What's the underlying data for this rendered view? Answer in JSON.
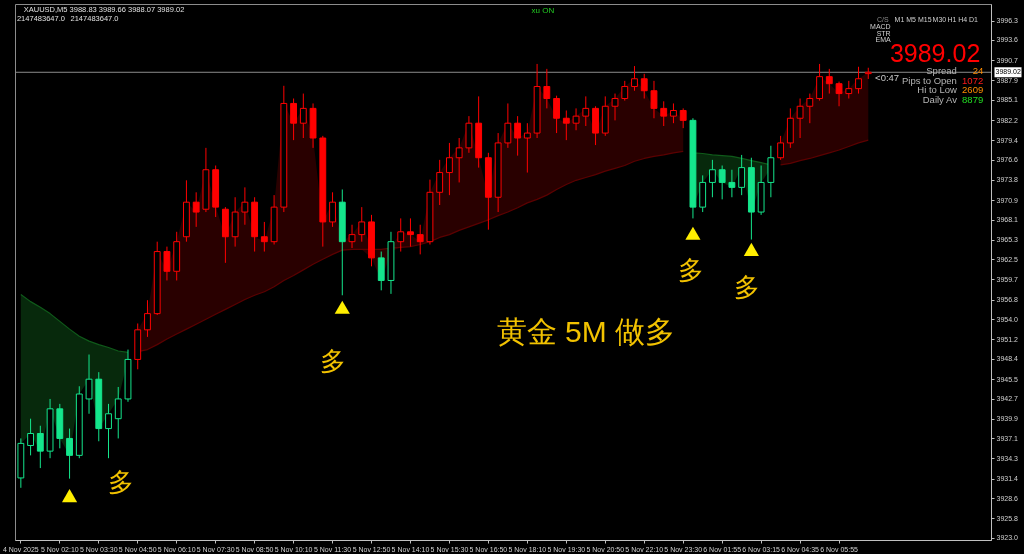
{
  "chart_data": {
    "type": "candlestick",
    "categories": [
      "4 Nov 2025",
      null,
      null,
      null,
      "5 Nov 02:10",
      null,
      null,
      null,
      "5 Nov 03:30",
      null,
      null,
      null,
      "5 Nov 04:50",
      null,
      null,
      null,
      "5 Nov 06:10",
      null,
      null,
      null,
      "5 Nov 07:30",
      null,
      null,
      null,
      "5 Nov 08:50",
      null,
      null,
      null,
      "5 Nov 10:10",
      null,
      null,
      null,
      "5 Nov 11:30",
      null,
      null,
      null,
      "5 Nov 12:50",
      null,
      null,
      null,
      "5 Nov 14:10",
      null,
      null,
      null,
      "5 Nov 15:30",
      null,
      null,
      null,
      "5 Nov 16:50",
      null,
      null,
      null,
      "5 Nov 18:10",
      null,
      null,
      null,
      "5 Nov 19:30",
      null,
      null,
      null,
      "5 Nov 20:50",
      null,
      null,
      null,
      "5 Nov 22:10",
      null,
      null,
      null,
      "5 Nov 23:30",
      null,
      null,
      null,
      "6 Nov 01:55",
      null,
      null,
      null,
      "6 Nov 03:15",
      null,
      null,
      null,
      "6 Nov 04:35",
      null,
      null,
      null,
      "6 Nov 05:55",
      null,
      null,
      null,
      null,
      null,
      null,
      null,
      null,
      null,
      null,
      null,
      null,
      null,
      null,
      null
    ],
    "ohlc": [
      [
        3931.5,
        3937.1,
        3930.1,
        3936.4
      ],
      [
        3936.1,
        3939.9,
        3934.7,
        3937.8
      ],
      [
        3937.8,
        3938.9,
        3932.9,
        3935.3
      ],
      [
        3935.3,
        3942.7,
        3934.3,
        3941.3
      ],
      [
        3941.3,
        3942.0,
        3935.7,
        3937.1
      ],
      [
        3937.1,
        3938.5,
        3931.4,
        3934.7
      ],
      [
        3934.7,
        3944.5,
        3934.3,
        3943.4
      ],
      [
        3942.7,
        3949.0,
        3940.6,
        3945.5
      ],
      [
        3945.5,
        3946.5,
        3936.7,
        3938.5
      ],
      [
        3938.5,
        3942.0,
        3934.3,
        3940.6
      ],
      [
        3939.9,
        3944.4,
        3937.1,
        3942.7
      ],
      [
        3942.7,
        3949.7,
        3942.3,
        3948.3
      ],
      [
        3948.3,
        3953.4,
        3946.9,
        3952.5
      ],
      [
        3952.5,
        3956.7,
        3951.5,
        3954.8
      ],
      [
        3954.8,
        3965.0,
        3954.6,
        3963.6
      ],
      [
        3963.6,
        3964.3,
        3959.5,
        3960.8
      ],
      [
        3960.8,
        3966.4,
        3959.5,
        3965.0
      ],
      [
        3965.7,
        3973.7,
        3965.0,
        3970.6
      ],
      [
        3970.6,
        3972.0,
        3967.1,
        3969.2
      ],
      [
        3969.6,
        3978.3,
        3969.2,
        3975.2
      ],
      [
        3975.2,
        3975.8,
        3968.5,
        3969.9
      ],
      [
        3969.6,
        3969.9,
        3962.0,
        3965.7
      ],
      [
        3965.7,
        3971.3,
        3964.3,
        3969.2
      ],
      [
        3969.2,
        3972.7,
        3967.4,
        3970.6
      ],
      [
        3970.6,
        3971.3,
        3963.6,
        3965.7
      ],
      [
        3965.7,
        3967.8,
        3963.6,
        3965.0
      ],
      [
        3965.0,
        3971.6,
        3964.6,
        3969.9
      ],
      [
        3969.9,
        3987.1,
        3969.2,
        3984.6
      ],
      [
        3984.6,
        3985.3,
        3979.4,
        3981.8
      ],
      [
        3981.8,
        3986.0,
        3979.7,
        3983.9
      ],
      [
        3983.9,
        3984.6,
        3978.3,
        3979.7
      ],
      [
        3979.7,
        3980.0,
        3964.3,
        3967.8
      ],
      [
        3967.8,
        3972.0,
        3967.1,
        3970.6
      ],
      [
        3970.6,
        3972.4,
        3957.4,
        3965.0
      ],
      [
        3965.0,
        3967.4,
        3964.1,
        3966.0
      ],
      [
        3966.0,
        3969.9,
        3965.0,
        3967.8
      ],
      [
        3967.8,
        3968.8,
        3961.5,
        3962.7
      ],
      [
        3962.7,
        3963.6,
        3958.1,
        3959.5
      ],
      [
        3959.5,
        3966.4,
        3957.6,
        3965.0
      ],
      [
        3965.0,
        3968.3,
        3963.6,
        3966.4
      ],
      [
        3966.4,
        3968.3,
        3964.3,
        3966.0
      ],
      [
        3966.0,
        3967.4,
        3963.2,
        3965.0
      ],
      [
        3965.0,
        3973.8,
        3964.6,
        3972.0
      ],
      [
        3972.0,
        3976.6,
        3970.2,
        3974.8
      ],
      [
        3974.8,
        3979.0,
        3971.6,
        3976.9
      ],
      [
        3976.9,
        3979.7,
        3973.4,
        3978.3
      ],
      [
        3978.3,
        3982.8,
        3977.6,
        3981.8
      ],
      [
        3981.8,
        3985.6,
        3975.5,
        3976.9
      ],
      [
        3976.9,
        3977.6,
        3966.7,
        3971.3
      ],
      [
        3971.3,
        3980.4,
        3969.2,
        3979.0
      ],
      [
        3979.0,
        3984.6,
        3978.3,
        3981.8
      ],
      [
        3981.8,
        3982.8,
        3977.2,
        3979.7
      ],
      [
        3979.7,
        3981.8,
        3974.8,
        3980.4
      ],
      [
        3980.4,
        3990.2,
        3979.7,
        3987.0
      ],
      [
        3987.0,
        3989.5,
        3983.9,
        3985.3
      ],
      [
        3985.3,
        3985.7,
        3980.4,
        3982.5
      ],
      [
        3982.5,
        3983.6,
        3979.4,
        3981.8
      ],
      [
        3981.8,
        3983.9,
        3980.8,
        3982.8
      ],
      [
        3982.8,
        3985.6,
        3981.4,
        3983.9
      ],
      [
        3983.9,
        3984.2,
        3978.7,
        3980.4
      ],
      [
        3980.4,
        3985.6,
        3980.0,
        3984.2
      ],
      [
        3984.2,
        3986.0,
        3982.2,
        3985.3
      ],
      [
        3985.3,
        3987.8,
        3985.0,
        3987.0
      ],
      [
        3987.0,
        3989.9,
        3986.4,
        3988.1
      ],
      [
        3988.1,
        3988.8,
        3985.3,
        3986.4
      ],
      [
        3986.4,
        3987.8,
        3982.5,
        3983.9
      ],
      [
        3983.9,
        3984.9,
        3981.4,
        3982.8
      ],
      [
        3982.8,
        3984.6,
        3981.8,
        3983.6
      ],
      [
        3983.6,
        3983.9,
        3981.1,
        3982.2
      ],
      [
        3982.2,
        3982.5,
        3968.3,
        3969.9
      ],
      [
        3969.9,
        3974.4,
        3969.2,
        3973.4
      ],
      [
        3973.4,
        3976.6,
        3971.3,
        3975.2
      ],
      [
        3975.2,
        3975.8,
        3971.0,
        3973.4
      ],
      [
        3973.4,
        3975.2,
        3971.3,
        3972.7
      ],
      [
        3972.7,
        3977.3,
        3971.6,
        3975.5
      ],
      [
        3975.5,
        3976.9,
        3965.3,
        3969.2
      ],
      [
        3969.2,
        3975.8,
        3968.8,
        3973.4
      ],
      [
        3973.4,
        3978.6,
        3971.3,
        3976.9
      ],
      [
        3976.9,
        3980.0,
        3976.6,
        3979.0
      ],
      [
        3979.0,
        3983.9,
        3978.3,
        3982.5
      ],
      [
        3982.5,
        3985.3,
        3979.7,
        3984.2
      ],
      [
        3984.2,
        3986.0,
        3981.8,
        3985.3
      ],
      [
        3985.3,
        3990.2,
        3985.0,
        3988.4
      ],
      [
        3988.4,
        3989.5,
        3986.0,
        3987.4
      ],
      [
        3987.4,
        3987.7,
        3984.2,
        3986.0
      ],
      [
        3986.0,
        3987.8,
        3985.3,
        3986.7
      ],
      [
        3986.7,
        3989.8,
        3986.0,
        3988.1
      ],
      [
        3988.83,
        3989.66,
        3988.07,
        3989.02
      ],
      null,
      null,
      null,
      null,
      null,
      null,
      null,
      null,
      null,
      null,
      null,
      null
    ],
    "colors": [
      "#14e68c",
      "#14e68c",
      "#14e68c",
      "#14e68c",
      "#14e68c",
      "#14e68c",
      "#14e68c",
      "#14e68c",
      "#14e68c",
      "#14e68c",
      "#14e68c",
      "#14e68c",
      "#ff0000",
      "#ff0000",
      "#ff0000",
      "#ff0000",
      "#ff0000",
      "#ff0000",
      "#ff0000",
      "#ff0000",
      "#ff0000",
      "#ff0000",
      "#ff0000",
      "#ff0000",
      "#ff0000",
      "#ff0000",
      "#ff0000",
      "#ff0000",
      "#ff0000",
      "#ff0000",
      "#ff0000",
      "#ff0000",
      "#ff0000",
      "#14e68c",
      "#ff0000",
      "#ff0000",
      "#ff0000",
      "#14e68c",
      "#14e68c",
      "#ff0000",
      "#ff0000",
      "#ff0000",
      "#ff0000",
      "#ff0000",
      "#ff0000",
      "#ff0000",
      "#ff0000",
      "#ff0000",
      "#ff0000",
      "#ff0000",
      "#ff0000",
      "#ff0000",
      "#ff0000",
      "#ff0000",
      "#ff0000",
      "#ff0000",
      "#ff0000",
      "#ff0000",
      "#ff0000",
      "#ff0000",
      "#ff0000",
      "#ff0000",
      "#ff0000",
      "#ff0000",
      "#ff0000",
      "#ff0000",
      "#ff0000",
      "#ff0000",
      "#ff0000",
      "#14e68c",
      "#14e68c",
      "#14e68c",
      "#14e68c",
      "#14e68c",
      "#14e68c",
      "#14e68c",
      "#14e68c",
      "#14e68c",
      "#ff0000",
      "#ff0000",
      "#ff0000",
      "#ff0000",
      "#ff0000",
      "#ff0000",
      "#ff0000",
      "#ff0000",
      "#ff0000",
      "#ff0000",
      null,
      null,
      null,
      null,
      null,
      null,
      null,
      null,
      null,
      null,
      null,
      null
    ],
    "ylim": [
      3922.7,
      3998.7
    ],
    "yticks": [
      {
        "value": 3923,
        "label": "3923.0"
      },
      3925.8,
      3928.6,
      3931.4,
      3934.3,
      3937.1,
      3939.9,
      3942.7,
      3945.5,
      3948.4,
      3951.2,
      {
        "value": 3954,
        "label": "3954.0"
      },
      3956.8,
      3959.7,
      3962.5,
      3965.3,
      3968.1,
      3970.9,
      3973.8,
      3976.6,
      3979.4,
      3982.2,
      3985.1,
      3987.9,
      3990.7,
      3993.6,
      3996.3
    ],
    "series": [
      {
        "type": "line",
        "color": "#5c0000",
        "values": [
          null,
          null,
          null,
          null,
          null,
          null,
          null,
          null,
          null,
          null,
          null,
          null,
          3949.4,
          3949.7,
          3950.4,
          3951.2,
          3951.9,
          3952.6,
          3953.3,
          3954.0,
          3954.7,
          3955.4,
          3956.1,
          3956.8,
          3957.4,
          3957.9,
          3958.6,
          3959.5,
          3960.2,
          3961.0,
          3961.8,
          3962.5,
          3963.2,
          3963.8,
          3963.9,
          3963.9,
          3963.9,
          3963.9,
          3964.1,
          3964.2,
          3964.3,
          3964.6,
          3965.0,
          3965.6,
          3966.0,
          3966.6,
          3967.1,
          3967.6,
          3968.1,
          3968.7,
          3969.2,
          3969.8,
          3970.5,
          3971.0,
          3971.6,
          3972.4,
          3973.1,
          3973.7,
          3974.1,
          3974.5,
          3975.0,
          3975.4,
          3975.8,
          3976.4,
          3976.8,
          3977.1,
          3977.3,
          3977.6,
          3977.8,
          null,
          null,
          null,
          null,
          null,
          null,
          null,
          null,
          null,
          3975.9,
          3976.1,
          3976.5,
          3976.8,
          3977.2,
          3977.6,
          3978.0,
          3978.5,
          3979.0,
          3979.4,
          null,
          null,
          null,
          null,
          null,
          null,
          null,
          null,
          null,
          null,
          null,
          null
        ],
        "lower": [
          null,
          null,
          null,
          null,
          null,
          null,
          null,
          null,
          null,
          null,
          null,
          null,
          3949.4,
          3949.7,
          3950.4,
          3951.2,
          3951.9,
          3952.6,
          3953.3,
          3954.0,
          3954.7,
          3955.4,
          3956.1,
          3956.8,
          3957.4,
          3957.9,
          3958.6,
          3959.5,
          3960.2,
          3961.0,
          3961.8,
          3962.5,
          3963.2,
          3963.8,
          3963.9,
          3963.9,
          3962.7,
          3959.5,
          3963.6,
          3964.2,
          3964.3,
          3964.6,
          3965.0,
          3965.6,
          3966.0,
          3966.6,
          3967.1,
          3967.6,
          3968.1,
          3968.7,
          3969.2,
          3969.8,
          3970.5,
          3971.0,
          3971.6,
          3972.4,
          3973.1,
          3973.7,
          3974.1,
          3974.5,
          3975.0,
          3975.4,
          3975.8,
          3976.4,
          3976.8,
          3977.1,
          3977.3,
          3977.6,
          3977.8,
          null,
          null,
          null,
          null,
          null,
          null,
          null,
          null,
          null,
          3975.9,
          3976.1,
          3976.5,
          3976.8,
          3977.2,
          3977.6,
          3978.0,
          3978.5,
          3979.0,
          3979.4,
          null,
          null,
          null,
          null,
          null,
          null,
          null,
          null,
          null,
          null,
          null,
          null
        ],
        "upper": [
          null,
          null,
          null,
          null,
          null,
          null,
          null,
          null,
          null,
          null,
          null,
          null,
          3952.5,
          3954.8,
          3963.6,
          3960.8,
          3965.0,
          3970.6,
          3969.2,
          3975.2,
          3969.9,
          3965.7,
          3969.2,
          3970.6,
          3965.7,
          3965.0,
          3969.9,
          3984.6,
          3981.8,
          3983.9,
          3979.7,
          3967.8,
          3970.6,
          3965.0,
          3966.0,
          3967.8,
          3963.9,
          3963.9,
          3964.1,
          3966.4,
          3966.0,
          3965.0,
          3972.0,
          3974.8,
          3976.9,
          3978.3,
          3981.8,
          3976.9,
          3971.3,
          3979.0,
          3981.8,
          3979.7,
          3980.4,
          3987.0,
          3985.3,
          3982.5,
          3981.8,
          3982.8,
          3983.9,
          3980.4,
          3984.2,
          3985.3,
          3987.0,
          3988.1,
          3986.4,
          3983.9,
          3982.8,
          3983.6,
          3982.2,
          null,
          null,
          null,
          null,
          null,
          null,
          null,
          null,
          null,
          3979.0,
          3982.5,
          3984.2,
          3985.3,
          3988.4,
          3987.4,
          3986.0,
          3986.7,
          3988.1,
          3989.02,
          null,
          null,
          null,
          null,
          null,
          null,
          null,
          null,
          null,
          null,
          null,
          null
        ]
      },
      {
        "type": "line",
        "color": "#0f5a1a",
        "values": [
          3957.5,
          3956.5,
          3955.7,
          3954.8,
          3953.7,
          3952.6,
          3951.6,
          3950.9,
          3950.4,
          3950.0,
          3949.5,
          3949.3,
          null,
          null,
          null,
          null,
          null,
          null,
          null,
          null,
          null,
          null,
          null,
          null,
          null,
          null,
          null,
          null,
          null,
          null,
          null,
          null,
          null,
          null,
          null,
          null,
          null,
          null,
          null,
          null,
          null,
          null,
          null,
          null,
          null,
          null,
          null,
          null,
          null,
          null,
          null,
          null,
          null,
          null,
          null,
          null,
          null,
          null,
          null,
          null,
          null,
          null,
          null,
          null,
          null,
          null,
          null,
          null,
          null,
          3977.6,
          3977.5,
          3977.3,
          3977.2,
          3977.1,
          3976.8,
          3976.5,
          3976.2,
          3975.9,
          null,
          null,
          null,
          null,
          null,
          null,
          null,
          null,
          null,
          null,
          null,
          null,
          null,
          null,
          null,
          null,
          null,
          null,
          null,
          null,
          null,
          null
        ],
        "lower": [
          3936.4,
          3937.8,
          3935.3,
          3941.3,
          3937.1,
          3934.7,
          3943.4,
          3945.5,
          3938.5,
          3940.6,
          3942.7,
          3948.3,
          null,
          null,
          null,
          null,
          null,
          null,
          null,
          null,
          null,
          null,
          null,
          null,
          null,
          null,
          null,
          null,
          null,
          null,
          null,
          null,
          null,
          null,
          null,
          null,
          null,
          null,
          null,
          null,
          null,
          null,
          null,
          null,
          null,
          null,
          null,
          null,
          null,
          null,
          null,
          null,
          null,
          null,
          null,
          null,
          null,
          null,
          null,
          null,
          null,
          null,
          null,
          null,
          null,
          null,
          null,
          null,
          null,
          3969.9,
          3973.4,
          3975.2,
          3973.4,
          3972.7,
          3975.5,
          3969.2,
          3973.4,
          3975.4,
          null,
          null,
          null,
          null,
          null,
          null,
          null,
          null,
          null,
          null,
          null,
          null,
          null,
          null,
          null,
          null,
          null,
          null,
          null,
          null,
          null,
          null
        ],
        "upper": [
          3957.5,
          3956.5,
          3955.7,
          3954.8,
          3953.7,
          3952.6,
          3951.6,
          3950.9,
          3950.4,
          3950.0,
          3949.5,
          3949.3,
          null,
          null,
          null,
          null,
          null,
          null,
          null,
          null,
          null,
          null,
          null,
          null,
          null,
          null,
          null,
          null,
          null,
          null,
          null,
          null,
          null,
          null,
          null,
          null,
          null,
          null,
          null,
          null,
          null,
          null,
          null,
          null,
          null,
          null,
          null,
          null,
          null,
          null,
          null,
          null,
          null,
          null,
          null,
          null,
          null,
          null,
          null,
          null,
          null,
          null,
          null,
          null,
          null,
          null,
          null,
          null,
          null,
          3977.6,
          3977.5,
          3977.3,
          3977.2,
          3977.1,
          3976.8,
          3976.5,
          3976.2,
          3975.9,
          null,
          null,
          null,
          null,
          null,
          null,
          null,
          null,
          null,
          null,
          null,
          null,
          null,
          null,
          null,
          null,
          null,
          null,
          null,
          null,
          null,
          null
        ]
      },
      {
        "type": "scatter",
        "color": "#ffee00",
        "marker": "triangle",
        "values": [
          null,
          null,
          null,
          null,
          null,
          3929.0,
          null,
          null,
          null,
          null,
          null,
          null,
          null,
          null,
          null,
          null,
          null,
          null,
          null,
          null,
          null,
          null,
          null,
          null,
          null,
          null,
          null,
          null,
          null,
          null,
          null,
          null,
          null,
          3955.7,
          null,
          null,
          null,
          null,
          null,
          null,
          null,
          null,
          null,
          null,
          null,
          null,
          null,
          null,
          null,
          null,
          null,
          null,
          null,
          null,
          null,
          null,
          null,
          null,
          null,
          null,
          null,
          null,
          null,
          null,
          null,
          null,
          null,
          null,
          null,
          3966.2,
          null,
          null,
          null,
          null,
          null,
          3963.9,
          null,
          null,
          null,
          null,
          null,
          null,
          null,
          null,
          null,
          null,
          null,
          null,
          null,
          null,
          null,
          null,
          null,
          null,
          null,
          null,
          null,
          null,
          null,
          null
        ]
      }
    ],
    "ref_lines": [
      {
        "axis": "y",
        "value": 3989.02,
        "label": "3989.02",
        "color": "#8c8c8c"
      }
    ],
    "annotations": [
      "XAUUSD,M5 3988.83 3989.66 3988.07 3989.02",
      "2147483647.0",
      "2147483647.0",
      "xu ON",
      "C/S",
      "M1",
      "M5",
      "M15",
      "M30",
      "H1",
      "H4",
      "D1",
      "MACD",
      "STR",
      "EMA",
      "3989.02",
      "Spread",
      "24",
      "Pips to Open",
      "1072",
      "Hi to Low",
      "2609",
      "Daily Av",
      "8879",
      "<0:47",
      "多",
      "多",
      "多",
      "多",
      "黄金 5M 做多"
    ]
  }
}
